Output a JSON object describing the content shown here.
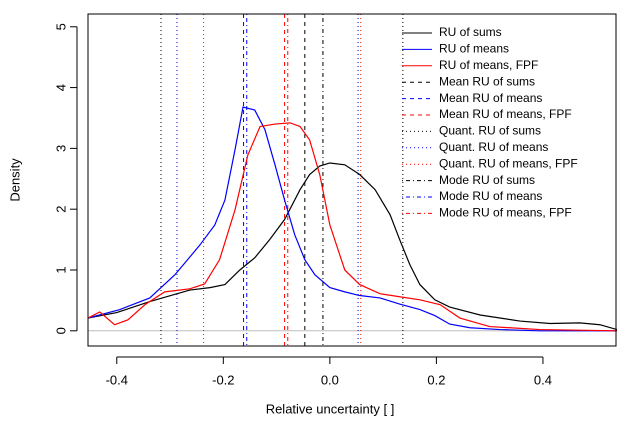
{
  "chart_data": {
    "type": "line",
    "xlabel": "Relative uncertainty [ ]",
    "ylabel": "Density",
    "xlim": [
      -0.454,
      0.539
    ],
    "ylim": [
      -0.25,
      5.21
    ],
    "xticks": [
      -0.4,
      -0.2,
      {
        "value": 0,
        "label": "0.0"
      },
      0.2,
      0.4
    ],
    "yticks": [
      0,
      1,
      2,
      3,
      4,
      5
    ],
    "legend": "top-right",
    "series": [
      {
        "name": "RU of sums",
        "color": "#000000",
        "x": [
          -0.454,
          -0.4,
          -0.338,
          -0.263,
          -0.225,
          -0.197,
          -0.169,
          -0.141,
          -0.113,
          -0.085,
          -0.056,
          -0.038,
          -0.019,
          0,
          0.028,
          0.056,
          0.085,
          0.113,
          0.131,
          0.15,
          0.169,
          0.197,
          0.225,
          0.282,
          0.357,
          0.413,
          0.469,
          0.507,
          0.539
        ],
        "values": [
          0.21,
          0.3,
          0.48,
          0.67,
          0.71,
          0.76,
          1.0,
          1.2,
          1.5,
          1.83,
          2.32,
          2.57,
          2.71,
          2.76,
          2.73,
          2.57,
          2.32,
          1.91,
          1.5,
          1.09,
          0.76,
          0.51,
          0.39,
          0.26,
          0.16,
          0.12,
          0.13,
          0.1,
          0.02
        ]
      },
      {
        "name": "RU of means",
        "color": "#0000ff",
        "x": [
          -0.454,
          -0.394,
          -0.338,
          -0.291,
          -0.244,
          -0.216,
          -0.197,
          -0.178,
          -0.163,
          -0.141,
          -0.122,
          -0.103,
          -0.085,
          -0.066,
          -0.047,
          -0.028,
          0,
          0.028,
          0.056,
          0.094,
          0.131,
          0.169,
          0.197,
          0.225,
          0.263,
          0.319,
          0.394,
          0.539
        ],
        "values": [
          0.21,
          0.35,
          0.54,
          0.92,
          1.41,
          1.74,
          2.15,
          2.98,
          3.68,
          3.63,
          3.31,
          2.73,
          2.15,
          1.58,
          1.17,
          0.92,
          0.71,
          0.64,
          0.58,
          0.54,
          0.44,
          0.35,
          0.25,
          0.11,
          0.05,
          0.02,
          0,
          0
        ]
      },
      {
        "name": "RU of means, FPF",
        "color": "#ff0000",
        "x": [
          -0.454,
          -0.432,
          -0.404,
          -0.379,
          -0.347,
          -0.31,
          -0.263,
          -0.235,
          -0.207,
          -0.178,
          -0.154,
          -0.131,
          -0.103,
          -0.075,
          -0.056,
          -0.038,
          -0.019,
          0,
          0.028,
          0.056,
          0.094,
          0.131,
          0.169,
          0.207,
          0.244,
          0.3,
          0.394,
          0.539
        ],
        "values": [
          0.21,
          0.31,
          0.1,
          0.18,
          0.43,
          0.64,
          0.69,
          0.77,
          1.17,
          1.99,
          2.89,
          3.36,
          3.4,
          3.42,
          3.36,
          3.14,
          2.57,
          1.74,
          1.0,
          0.76,
          0.61,
          0.56,
          0.51,
          0.43,
          0.21,
          0.07,
          0.02,
          0
        ]
      }
    ],
    "reference_lines": [
      {
        "name": "Mean RU of sums",
        "color": "#000000",
        "style": "dashed",
        "x": [
          -0.047
        ]
      },
      {
        "name": "Mean RU of means",
        "color": "#0000ff",
        "style": "dashed",
        "x": [
          -0.162
        ]
      },
      {
        "name": "Mean RU of means, FPF",
        "color": "#ff0000",
        "style": "dashed",
        "x": [
          -0.085
        ]
      },
      {
        "name": "Quant. RU of sums",
        "color": "#000000",
        "style": "dotted",
        "x": [
          -0.317,
          0.137
        ]
      },
      {
        "name": "Quant. RU of means",
        "color": "#0000ff",
        "style": "dotted",
        "x": [
          -0.287,
          0.053
        ]
      },
      {
        "name": "Quant. RU of means, FPF",
        "color": "#ff0000",
        "style": "dotted",
        "x": [
          -0.237,
          0.058
        ]
      },
      {
        "name": "Mode RU of sums",
        "color": "#000000",
        "style": "dotdash",
        "x": [
          -0.013
        ]
      },
      {
        "name": "Mode RU of means",
        "color": "#0000ff",
        "style": "dotdash",
        "x": [
          -0.156
        ]
      },
      {
        "name": "Mode RU of means, FPF",
        "color": "#ff0000",
        "style": "dotdash",
        "x": [
          -0.079
        ]
      }
    ]
  }
}
